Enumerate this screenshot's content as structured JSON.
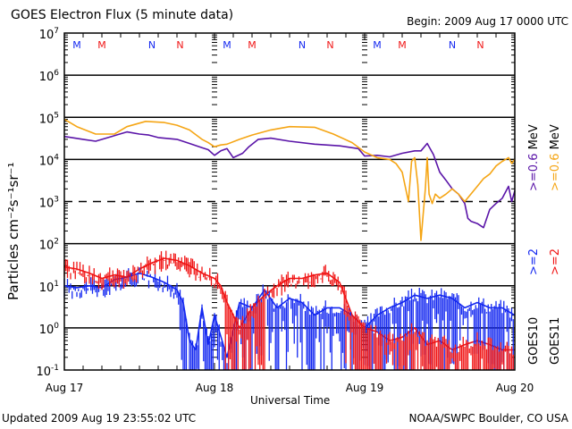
{
  "header": {
    "title": "GOES Electron Flux (5 minute data)",
    "begin": "Begin: 2009 Aug 17 0000 UTC"
  },
  "footer": {
    "updated": "Updated 2009 Aug 19 23:55:02 UTC",
    "source": "NOAA/SWPC Boulder, CO USA"
  },
  "legend": {
    "goes10": "GOES10",
    "goes11": "GOES11",
    "g10_2mev": ">=2",
    "g11_2mev": ">=2",
    "g10_06mev": ">=0.6",
    "g11_06mev": ">=0.6",
    "mev_1": "MeV",
    "mev_2": "MeV"
  },
  "chart_data": {
    "type": "line",
    "title": "GOES Electron Flux (5 minute data)",
    "xlabel": "Universal Time",
    "ylabel": "Particles cm⁻²s⁻¹sr⁻¹",
    "yscale": "log",
    "ylim": [
      0.1,
      10000000
    ],
    "xlim_hours": [
      0,
      72
    ],
    "x_tick_labels": [
      "Aug 17",
      "Aug 18",
      "Aug 19",
      "Aug 20"
    ],
    "y_tick_labels": [
      {
        "base": "10",
        "exp": "7"
      },
      {
        "base": "10",
        "exp": "6"
      },
      {
        "base": "10",
        "exp": "5"
      },
      {
        "base": "10",
        "exp": "4"
      },
      {
        "base": "10",
        "exp": "3"
      },
      {
        "base": "10",
        "exp": "2"
      },
      {
        "base": "10",
        "exp": "1"
      },
      {
        "base": "10",
        "exp": "0"
      },
      {
        "base": "10",
        "exp": "-1"
      }
    ],
    "grid_solid_decades": [
      6,
      5,
      4,
      2,
      1,
      0
    ],
    "grid_dashed_decades": [
      3
    ],
    "colors": {
      "goes10_06": "#5a14a8",
      "goes11_06": "#f5a514",
      "goes10_2": "#1428f0",
      "goes11_2": "#f01414",
      "label_black": "#000000"
    },
    "markers": [
      {
        "label": "M",
        "hour": 2,
        "color": "#1428f0"
      },
      {
        "label": "M",
        "hour": 6,
        "color": "#f01414"
      },
      {
        "label": "N",
        "hour": 14,
        "color": "#1428f0"
      },
      {
        "label": "N",
        "hour": 18.5,
        "color": "#f01414"
      },
      {
        "label": "M",
        "hour": 26,
        "color": "#1428f0"
      },
      {
        "label": "M",
        "hour": 30,
        "color": "#f01414"
      },
      {
        "label": "N",
        "hour": 38,
        "color": "#1428f0"
      },
      {
        "label": "N",
        "hour": 42.5,
        "color": "#f01414"
      },
      {
        "label": "M",
        "hour": 50,
        "color": "#1428f0"
      },
      {
        "label": "M",
        "hour": 54,
        "color": "#f01414"
      },
      {
        "label": "N",
        "hour": 62,
        "color": "#1428f0"
      },
      {
        "label": "N",
        "hour": 66.5,
        "color": "#f01414"
      }
    ],
    "series": [
      {
        "name": "GOES10 >=0.6 MeV",
        "color": "#5a14a8",
        "hours": [
          0,
          3,
          5,
          7,
          10,
          12,
          13.5,
          15,
          18,
          20,
          22,
          23,
          24,
          25,
          26,
          27,
          28.5,
          29.5,
          31,
          33,
          36,
          40,
          44,
          47,
          48,
          50,
          52,
          54,
          56,
          57,
          58,
          59,
          60,
          61,
          62,
          63,
          64,
          64.5,
          65,
          66,
          67,
          68,
          69,
          70,
          71,
          71.5,
          72
        ],
        "values": [
          35000,
          30000,
          27000,
          33000,
          45000,
          40000,
          38000,
          33000,
          30000,
          24000,
          19000,
          17000,
          12500,
          16000,
          18000,
          11000,
          14000,
          20000,
          30000,
          32000,
          27000,
          23000,
          21000,
          18000,
          12000,
          12500,
          11500,
          14000,
          16000,
          16000,
          24000,
          13000,
          5000,
          3200,
          2000,
          1500,
          900,
          400,
          340,
          300,
          240,
          650,
          900,
          1200,
          2300,
          1000,
          1800
        ]
      },
      {
        "name": "GOES11 >=0.6 MeV",
        "color": "#f5a514",
        "hours": [
          0,
          2,
          5,
          8,
          10,
          13,
          16,
          18,
          20,
          22,
          23,
          24,
          25,
          26,
          28,
          30,
          33,
          36,
          40,
          43,
          46,
          48,
          50,
          52,
          53,
          54,
          55,
          55.5,
          56,
          56.5,
          57,
          57.7,
          58,
          58.3,
          58.8,
          59.3,
          60,
          61,
          62,
          63,
          64,
          66,
          67,
          68,
          69,
          70,
          71,
          71.5,
          72
        ],
        "values": [
          90000,
          60000,
          40000,
          40000,
          60000,
          80000,
          75000,
          65000,
          50000,
          30000,
          25000,
          20000,
          22000,
          23000,
          30000,
          38000,
          50000,
          60000,
          58000,
          40000,
          25000,
          15000,
          11000,
          10000,
          8000,
          5000,
          1000,
          9000,
          11000,
          2500,
          120,
          2000,
          11000,
          1500,
          900,
          1500,
          1200,
          1500,
          2000,
          1500,
          1000,
          2300,
          3500,
          4500,
          7000,
          9000,
          11000,
          8000,
          10000
        ]
      },
      {
        "name": "GOES10 >=2 MeV",
        "color": "#1428f0",
        "hours": [
          0,
          2,
          4,
          6,
          8,
          10,
          12,
          14,
          16,
          18,
          19,
          20,
          21,
          22,
          23,
          24,
          26,
          28,
          30,
          32,
          34,
          36,
          38,
          40,
          42,
          44,
          46,
          48,
          50,
          52,
          54,
          56,
          58,
          60,
          62,
          64,
          66,
          68,
          70,
          72
        ],
        "values": [
          10,
          9,
          10,
          9,
          14,
          16,
          20,
          16,
          12,
          8,
          4,
          0.5,
          0.3,
          3,
          0.4,
          2,
          0.2,
          4,
          3,
          8,
          3,
          5,
          4,
          2,
          3,
          3,
          2,
          1,
          2,
          3,
          4,
          6,
          5,
          6,
          5,
          3,
          4,
          3,
          3,
          2
        ]
      },
      {
        "name": "GOES11 >=2 MeV",
        "color": "#f01414",
        "hours": [
          0,
          2,
          4,
          6,
          8,
          10,
          12,
          14,
          16,
          18,
          20,
          22,
          24,
          25,
          26,
          27,
          28,
          30,
          32,
          34,
          36,
          38,
          40,
          42,
          44,
          46,
          48,
          50,
          52,
          54,
          56,
          58,
          60,
          62,
          64,
          66,
          68,
          70,
          72
        ],
        "values": [
          28,
          25,
          20,
          15,
          18,
          16,
          25,
          35,
          45,
          40,
          30,
          20,
          15,
          10,
          4,
          2,
          1,
          3,
          6,
          10,
          15,
          15,
          18,
          20,
          12,
          2,
          1,
          0.8,
          0.5,
          0.6,
          1,
          0.4,
          0.5,
          0.3,
          0.4,
          0.5,
          0.4,
          0.3,
          0.3
        ]
      }
    ]
  }
}
